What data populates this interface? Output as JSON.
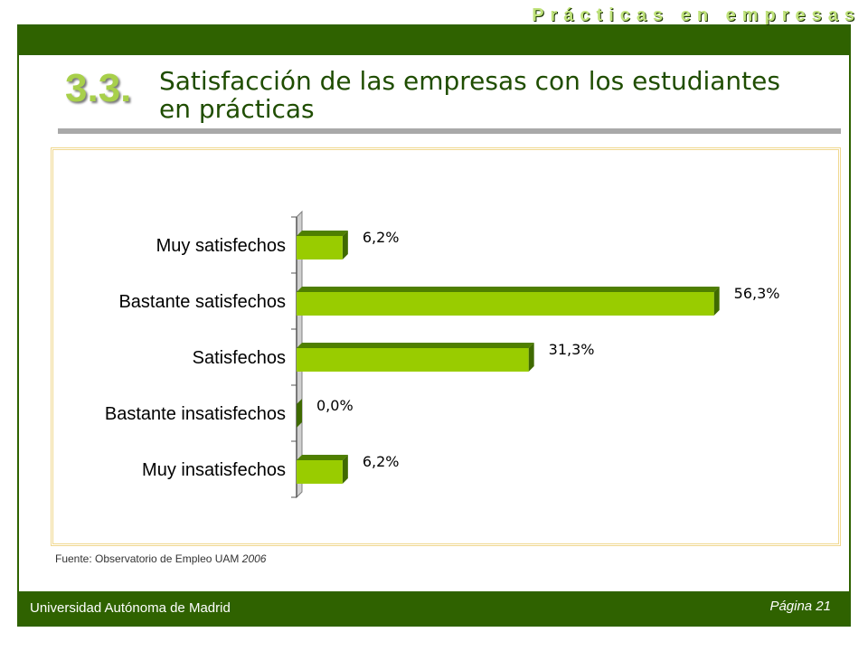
{
  "header": {
    "section_title": "Prácticas en empresas",
    "section_number": "3.3.",
    "page_title": "Satisfacción de las empresas con los estudiantes en prácticas"
  },
  "source": {
    "text": "Fuente: Observatorio de Empleo UAM",
    "year": "2006"
  },
  "footer": {
    "university": "Universidad Autónoma de Madrid",
    "page": "Página 21"
  },
  "colors": {
    "bar_front": "#99cc00",
    "bar_top": "#4f7f00",
    "bar_side": "#3f6a00",
    "header_green": "#2f6200"
  },
  "chart_data": {
    "type": "bar",
    "orientation": "horizontal",
    "categories": [
      "Muy satisfechos",
      "Bastante satisfechos",
      "Satisfechos",
      "Bastante insatisfechos",
      "Muy insatisfechos"
    ],
    "values": [
      6.2,
      56.3,
      31.3,
      0.0,
      6.2
    ],
    "value_labels": [
      "6,2%",
      "56,3%",
      "31,3%",
      "0,0%",
      "6,2%"
    ],
    "xlim": [
      0,
      60
    ],
    "grid": false,
    "legend": "none"
  }
}
